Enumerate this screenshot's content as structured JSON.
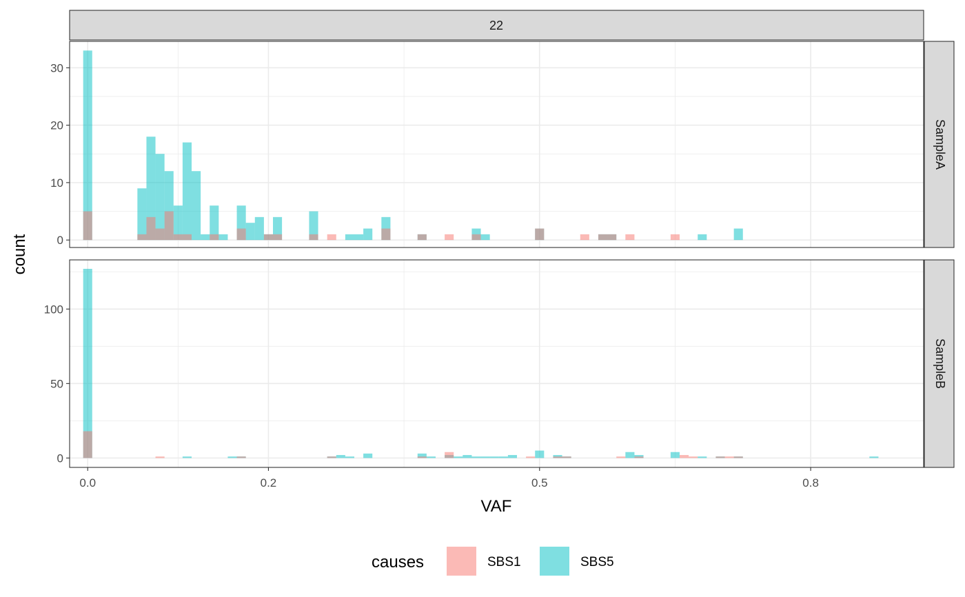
{
  "chart_data": {
    "type": "bar",
    "subtype": "faceted histogram (overlaid, semi-transparent)",
    "xlabel": "VAF",
    "ylabel": "count",
    "column_facet": "22",
    "x_ticks": [
      {
        "value": 0.0,
        "label": "0.0"
      },
      {
        "value": 0.2,
        "label": "0.2"
      },
      {
        "value": 0.5,
        "label": "0.5"
      },
      {
        "value": 0.8,
        "label": "0.8"
      }
    ],
    "legend": {
      "title": "causes",
      "position": "bottom",
      "items": [
        {
          "name": "SBS1",
          "color": "#F8766D"
        },
        {
          "name": "SBS5",
          "color": "#00BFC4"
        }
      ]
    },
    "colors": {
      "SBS1": "#F8766D",
      "SBS5": "#00BFC4",
      "strip_fill": "#D9D9D9",
      "grid": "#EBEBEB",
      "border": "#333333"
    },
    "bin_width": 0.01,
    "x_range": [
      -0.02,
      0.925
    ],
    "panels": [
      {
        "row_label": "SampleA",
        "ylim": [
          -1.3,
          34.6
        ],
        "y_ticks": [
          0,
          10,
          20,
          30
        ],
        "series": [
          {
            "name": "SBS5",
            "bins": [
              [
                0.0,
                33
              ],
              [
                0.06,
                9
              ],
              [
                0.07,
                18
              ],
              [
                0.08,
                15
              ],
              [
                0.09,
                12
              ],
              [
                0.1,
                6
              ],
              [
                0.11,
                17
              ],
              [
                0.12,
                12
              ],
              [
                0.13,
                1
              ],
              [
                0.14,
                6
              ],
              [
                0.15,
                1
              ],
              [
                0.17,
                6
              ],
              [
                0.18,
                3
              ],
              [
                0.19,
                4
              ],
              [
                0.2,
                1
              ],
              [
                0.21,
                4
              ],
              [
                0.25,
                5
              ],
              [
                0.29,
                1
              ],
              [
                0.3,
                1
              ],
              [
                0.31,
                2
              ],
              [
                0.33,
                4
              ],
              [
                0.37,
                1
              ],
              [
                0.43,
                2
              ],
              [
                0.44,
                1
              ],
              [
                0.5,
                2
              ],
              [
                0.57,
                1
              ],
              [
                0.58,
                1
              ],
              [
                0.68,
                1
              ],
              [
                0.72,
                2
              ]
            ]
          },
          {
            "name": "SBS1",
            "bins": [
              [
                0.0,
                5
              ],
              [
                0.06,
                1
              ],
              [
                0.07,
                4
              ],
              [
                0.08,
                2
              ],
              [
                0.09,
                5
              ],
              [
                0.1,
                1
              ],
              [
                0.11,
                1
              ],
              [
                0.14,
                1
              ],
              [
                0.17,
                2
              ],
              [
                0.2,
                1
              ],
              [
                0.21,
                1
              ],
              [
                0.25,
                1
              ],
              [
                0.27,
                1
              ],
              [
                0.33,
                2
              ],
              [
                0.37,
                1
              ],
              [
                0.4,
                1
              ],
              [
                0.43,
                1
              ],
              [
                0.5,
                2
              ],
              [
                0.55,
                1
              ],
              [
                0.57,
                1
              ],
              [
                0.58,
                1
              ],
              [
                0.6,
                1
              ],
              [
                0.65,
                1
              ]
            ]
          }
        ]
      },
      {
        "row_label": "SampleB",
        "ylim": [
          -6.3,
          133.0
        ],
        "y_ticks": [
          0,
          50,
          100
        ],
        "series": [
          {
            "name": "SBS5",
            "bins": [
              [
                0.0,
                127
              ],
              [
                0.11,
                1
              ],
              [
                0.16,
                1
              ],
              [
                0.17,
                1
              ],
              [
                0.27,
                1
              ],
              [
                0.28,
                2
              ],
              [
                0.29,
                1
              ],
              [
                0.31,
                3
              ],
              [
                0.37,
                3
              ],
              [
                0.38,
                1
              ],
              [
                0.4,
                2
              ],
              [
                0.41,
                1
              ],
              [
                0.42,
                2
              ],
              [
                0.43,
                1
              ],
              [
                0.44,
                1
              ],
              [
                0.45,
                1
              ],
              [
                0.46,
                1
              ],
              [
                0.47,
                2
              ],
              [
                0.5,
                5
              ],
              [
                0.52,
                2
              ],
              [
                0.53,
                1
              ],
              [
                0.6,
                4
              ],
              [
                0.61,
                2
              ],
              [
                0.65,
                4
              ],
              [
                0.68,
                1
              ],
              [
                0.7,
                1
              ],
              [
                0.72,
                1
              ],
              [
                0.87,
                1
              ]
            ]
          },
          {
            "name": "SBS1",
            "bins": [
              [
                0.0,
                18
              ],
              [
                0.08,
                1
              ],
              [
                0.17,
                1
              ],
              [
                0.27,
                1
              ],
              [
                0.37,
                1
              ],
              [
                0.4,
                4
              ],
              [
                0.49,
                1
              ],
              [
                0.52,
                1
              ],
              [
                0.53,
                1
              ],
              [
                0.59,
                1
              ],
              [
                0.61,
                1
              ],
              [
                0.66,
                2
              ],
              [
                0.67,
                1
              ],
              [
                0.7,
                1
              ],
              [
                0.71,
                1
              ],
              [
                0.72,
                1
              ]
            ]
          }
        ]
      }
    ]
  }
}
